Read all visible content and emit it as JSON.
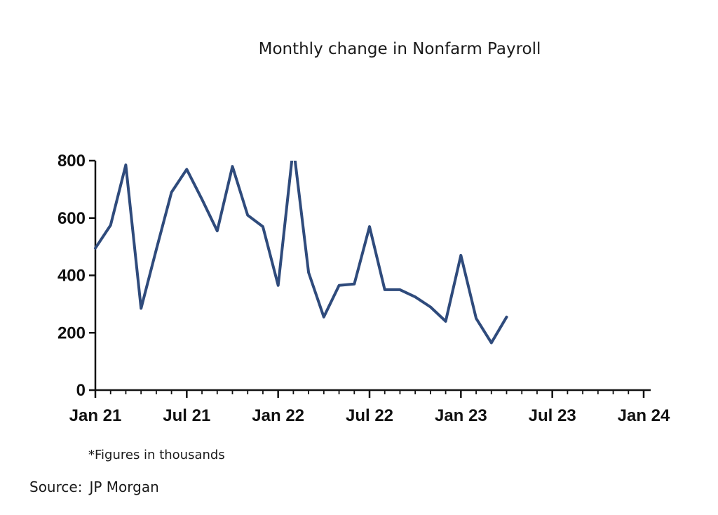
{
  "chart_data": {
    "type": "line",
    "title": "Monthly change in Nonfarm Payroll",
    "xlabel": "",
    "ylabel": "",
    "ylim": [
      0,
      800
    ],
    "y_ticks": [
      "0",
      "200",
      "400",
      "600",
      "800"
    ],
    "x_ticks": [
      "Jan 21",
      "Jul 21",
      "Jan 22",
      "Jul 22",
      "Jan 23",
      "Jul 23",
      "Jan 24"
    ],
    "grid": false,
    "legend": "none",
    "line_color": "#2f4b7c",
    "series": [
      {
        "x": [
          "2021-01",
          "2021-02",
          "2021-03",
          "2021-04",
          "2021-05",
          "2021-06",
          "2021-07",
          "2021-08",
          "2021-09",
          "2021-10",
          "2021-11",
          "2021-12",
          "2022-01",
          "2022-02",
          "2022-03",
          "2022-04",
          "2022-05",
          "2022-06",
          "2022-07",
          "2022-08",
          "2022-09",
          "2022-10",
          "2022-11",
          "2022-12",
          "2023-01",
          "2023-02",
          "2023-03",
          "2023-04"
        ],
        "values": [
          495,
          575,
          785,
          285,
          490,
          690,
          770,
          665,
          555,
          780,
          610,
          570,
          365,
          850,
          410,
          255,
          365,
          370,
          570,
          350,
          350,
          325,
          290,
          240,
          470,
          250,
          165,
          255
        ]
      }
    ]
  },
  "footnote": "*Figures in thousands",
  "source": {
    "label": "Source:",
    "value": "JP Morgan"
  }
}
